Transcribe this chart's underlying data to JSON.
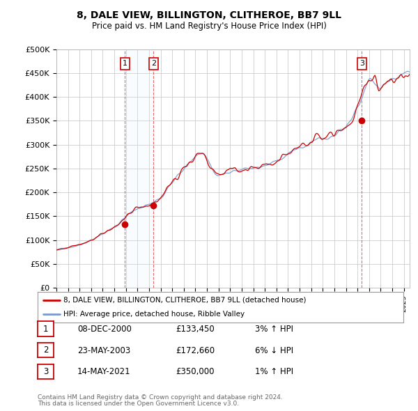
{
  "title_line1": "8, DALE VIEW, BILLINGTON, CLITHEROE, BB7 9LL",
  "title_line2": "Price paid vs. HM Land Registry's House Price Index (HPI)",
  "ylabel_ticks": [
    "£0",
    "£50K",
    "£100K",
    "£150K",
    "£200K",
    "£250K",
    "£300K",
    "£350K",
    "£400K",
    "£450K",
    "£500K"
  ],
  "ytick_values": [
    0,
    50000,
    100000,
    150000,
    200000,
    250000,
    300000,
    350000,
    400000,
    450000,
    500000
  ],
  "xlim_start": 1995.0,
  "xlim_end": 2025.5,
  "ylim": [
    0,
    500000
  ],
  "sale_dates": [
    2000.92,
    2003.39,
    2021.37
  ],
  "sale_prices": [
    133450,
    172660,
    350000
  ],
  "sale_labels": [
    "1",
    "2",
    "3"
  ],
  "legend_house": "8, DALE VIEW, BILLINGTON, CLITHEROE, BB7 9LL (detached house)",
  "legend_hpi": "HPI: Average price, detached house, Ribble Valley",
  "table_data": [
    [
      "1",
      "08-DEC-2000",
      "£133,450",
      "3% ↑ HPI"
    ],
    [
      "2",
      "23-MAY-2003",
      "£172,660",
      "6% ↓ HPI"
    ],
    [
      "3",
      "14-MAY-2021",
      "£350,000",
      "1% ↑ HPI"
    ]
  ],
  "footer_line1": "Contains HM Land Registry data © Crown copyright and database right 2024.",
  "footer_line2": "This data is licensed under the Open Government Licence v3.0.",
  "house_color": "#cc0000",
  "hpi_color": "#7799cc",
  "shade_color": "#ddeeff",
  "bg_color": "#ffffff"
}
